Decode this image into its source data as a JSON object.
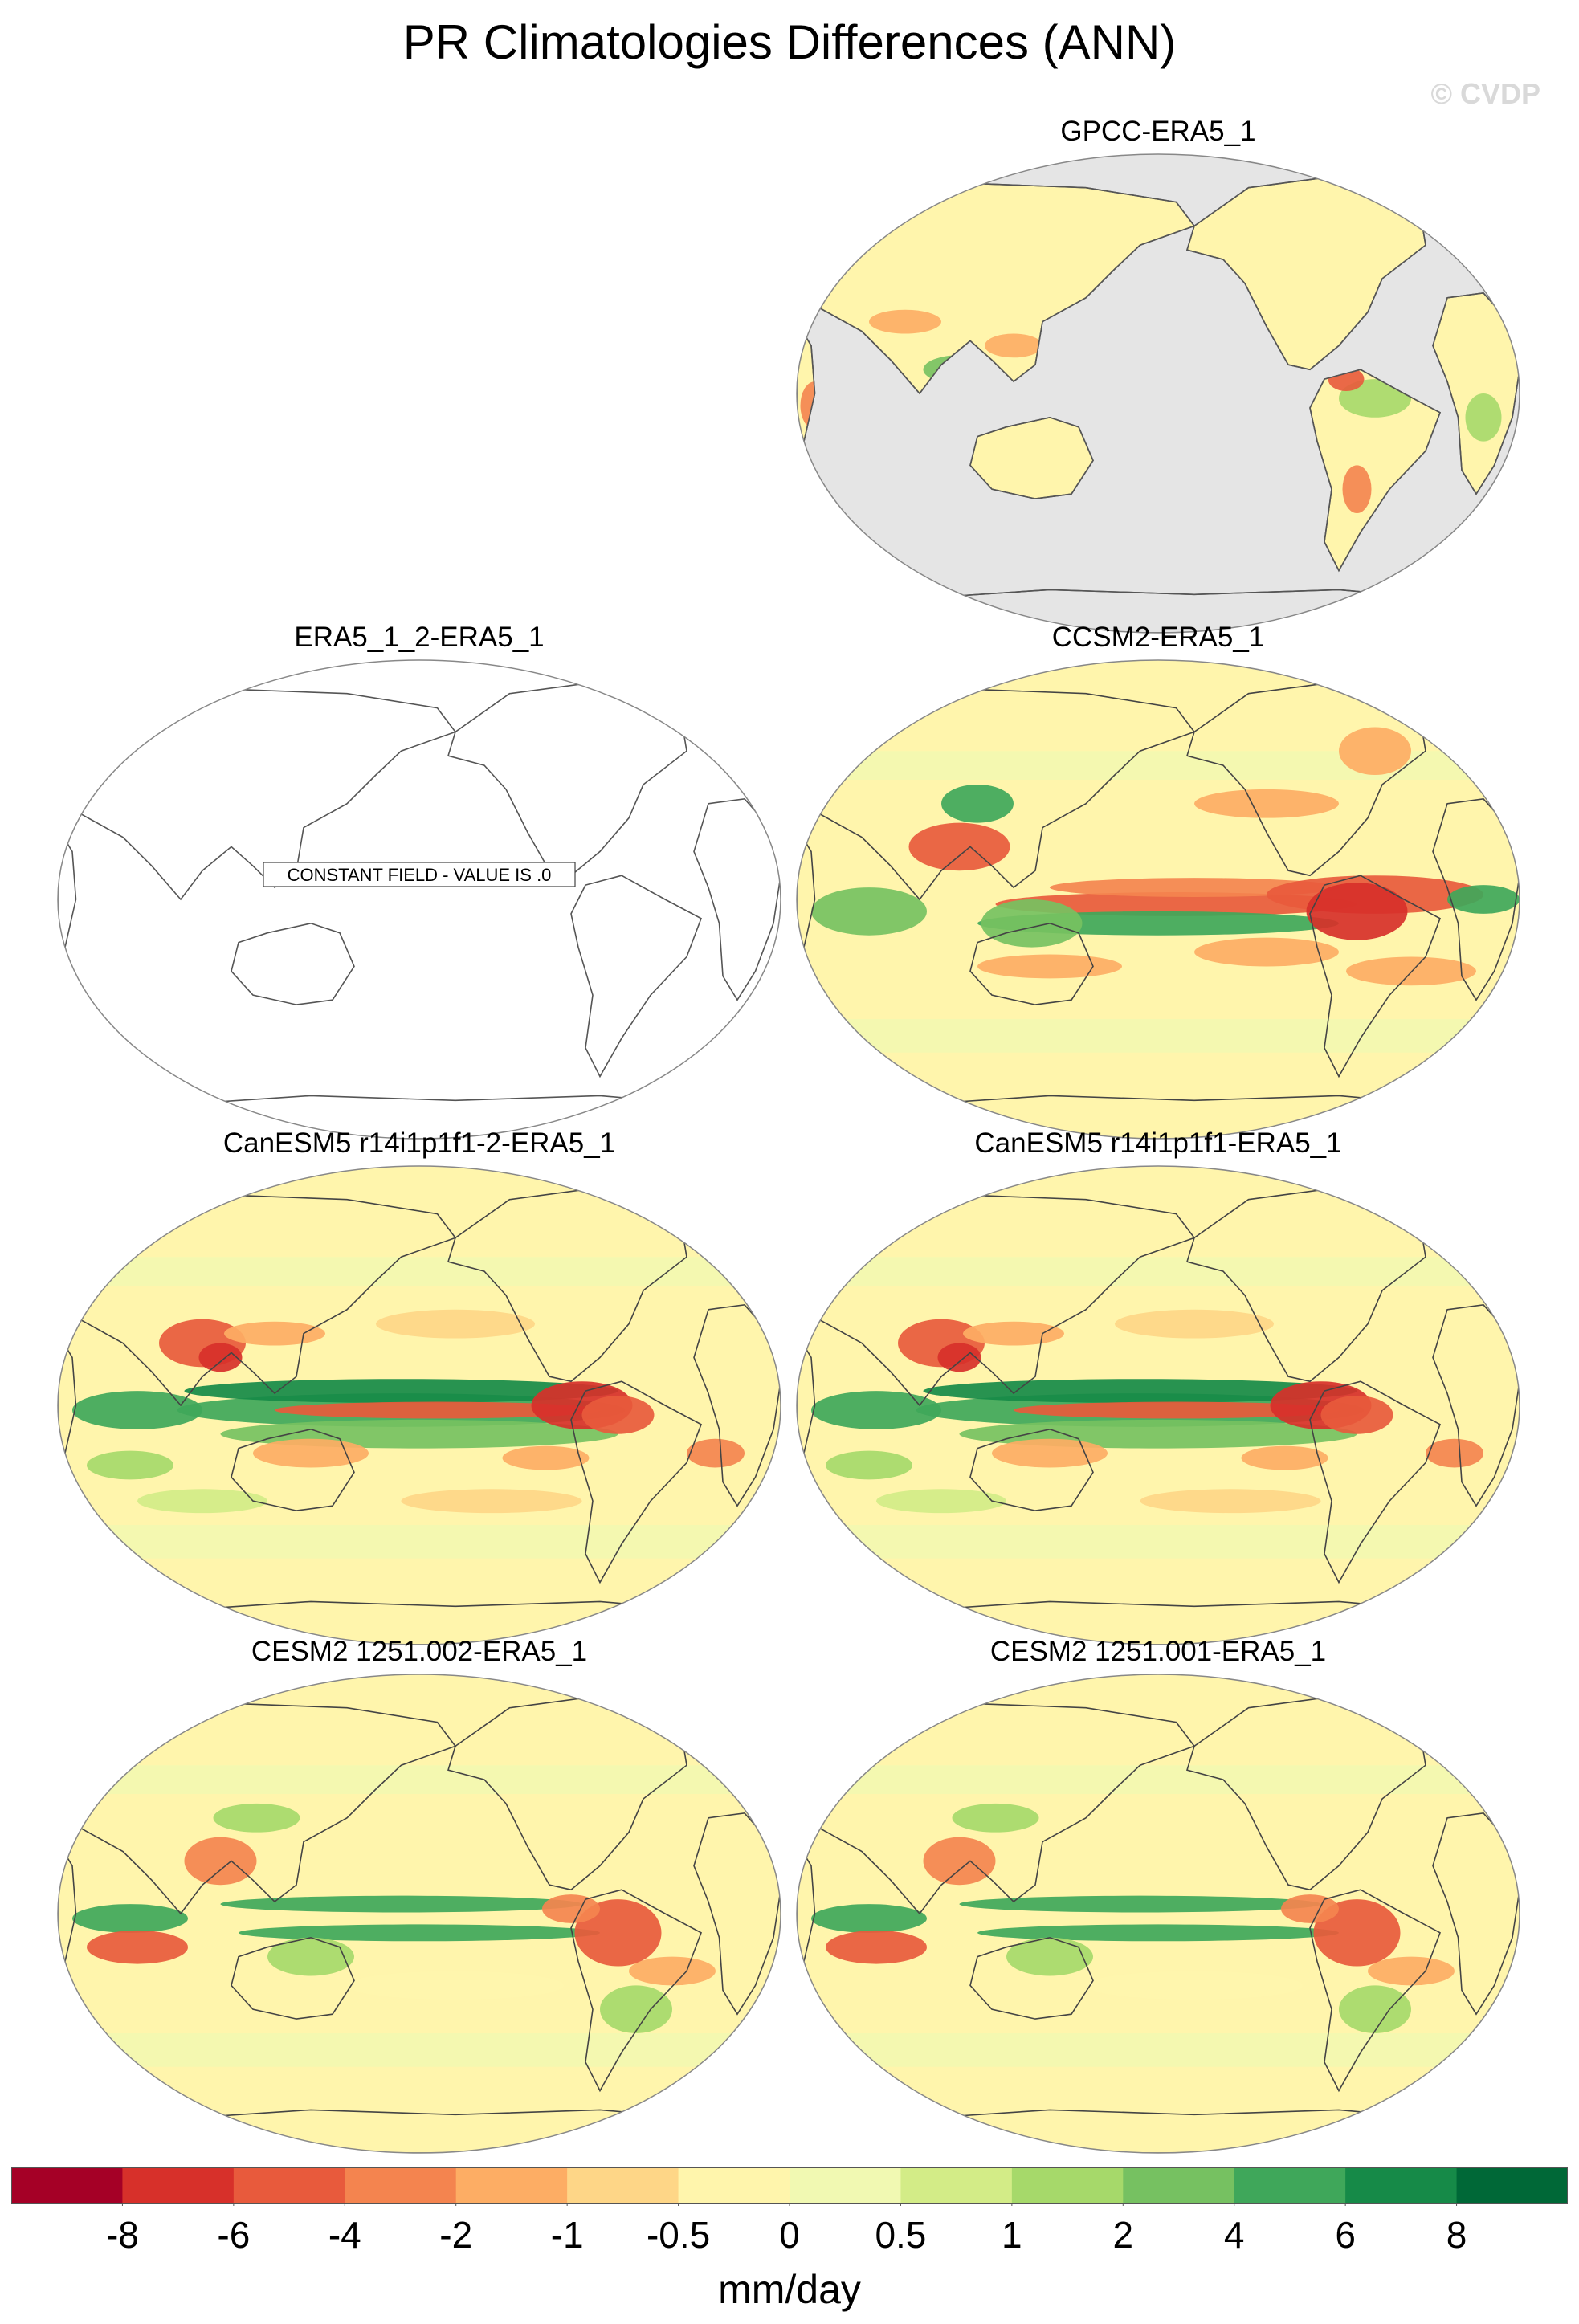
{
  "title": "PR Climatologies Differences (ANN)",
  "watermark": "© CVDP",
  "chart_data": {
    "type": "heatmap",
    "title": "PR Climatologies Differences (ANN)",
    "projection": "robinson",
    "season": "ANN",
    "units": "mm/day",
    "colorbar": {
      "levels": [
        -8,
        -6,
        -4,
        -2,
        -1,
        -0.5,
        0,
        0.5,
        1,
        2,
        4,
        6,
        8
      ],
      "tick_labels": [
        "-8",
        "-6",
        "-4",
        "-2",
        "-1",
        "-0.5",
        "0",
        "0.5",
        "1",
        "2",
        "4",
        "6",
        "8"
      ],
      "colors": [
        "#a50026",
        "#d7302a",
        "#e85a3c",
        "#f4844f",
        "#fdad64",
        "#fed687",
        "#fff5ac",
        "#f1f9b2",
        "#d3ec87",
        "#a6d96a",
        "#76c161",
        "#3fa75a",
        "#168a48",
        "#006837"
      ]
    },
    "panels": [
      {
        "title": "GPCC-ERA5_1",
        "kind": "land-only",
        "note": ""
      },
      {
        "title": "ERA5_1_2-ERA5_1",
        "kind": "constant",
        "note": "CONSTANT FIELD - VALUE IS .0"
      },
      {
        "title": "CCSM2-ERA5_1",
        "kind": "model",
        "note": ""
      },
      {
        "title": "CanESM5 r14i1p1f1-2-ERA5_1",
        "kind": "model",
        "note": ""
      },
      {
        "title": "CanESM5 r14i1p1f1-ERA5_1",
        "kind": "model",
        "note": ""
      },
      {
        "title": "CESM2 1251.002-ERA5_1",
        "kind": "model",
        "note": ""
      },
      {
        "title": "CESM2 1251.001-ERA5_1",
        "kind": "model",
        "note": ""
      }
    ]
  }
}
